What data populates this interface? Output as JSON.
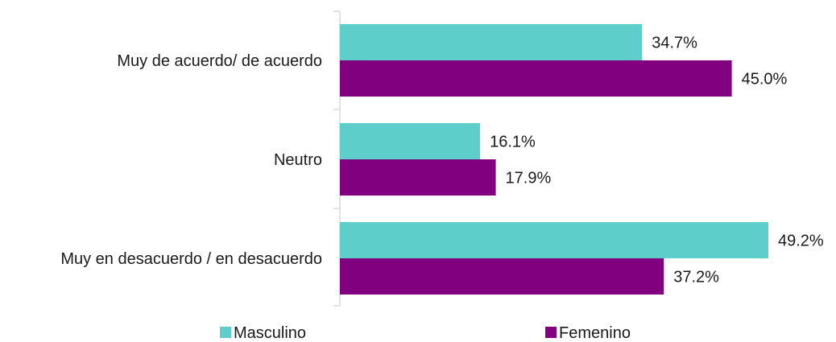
{
  "chart_data": {
    "type": "bar",
    "orientation": "horizontal",
    "categories": [
      "Muy de acuerdo/ de acuerdo",
      "Neutro",
      "Muy en desacuerdo / en desacuerdo"
    ],
    "series": [
      {
        "name": "Masculino",
        "values": [
          34.7,
          16.1,
          49.2
        ],
        "labels": [
          "34.7%",
          "16.1%",
          "49.2%"
        ],
        "color": "#5ECECB"
      },
      {
        "name": "Femenino",
        "values": [
          45.0,
          17.9,
          37.2
        ],
        "labels": [
          "45.0%",
          "17.9%",
          "37.2%"
        ],
        "color": "#800080"
      }
    ],
    "xlim": [
      0,
      49.2
    ],
    "grid": false,
    "legend_position": "bottom"
  }
}
